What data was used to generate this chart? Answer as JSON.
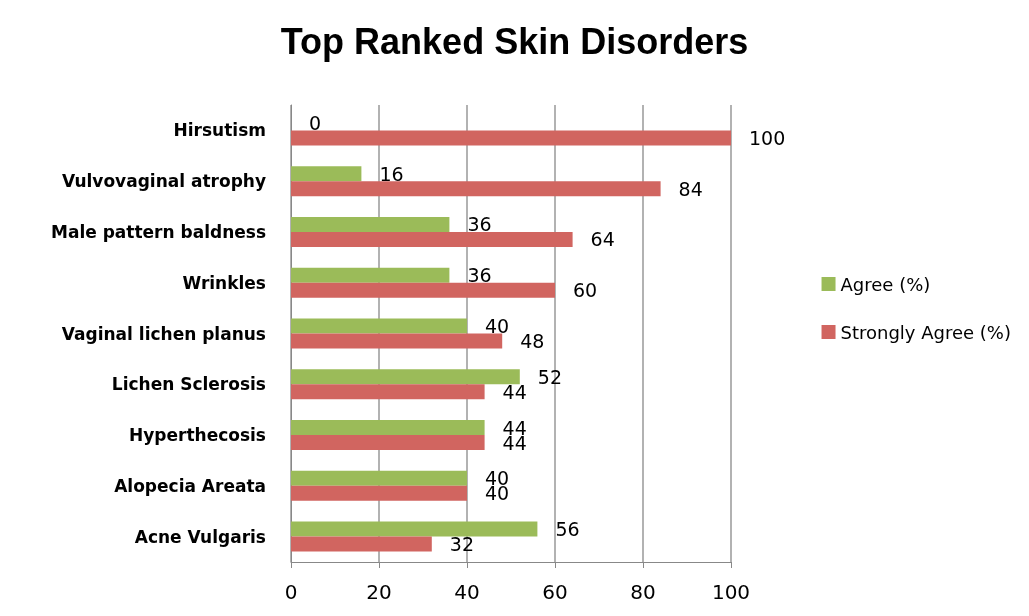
{
  "chart_data": {
    "type": "bar",
    "orientation": "horizontal",
    "title": "Top Ranked Skin Disorders",
    "categories": [
      "Hirsutism",
      "Vulvovaginal atrophy",
      "Male pattern baldness",
      "Wrinkles",
      "Vaginal lichen planus",
      "Lichen Sclerosis",
      "Hyperthecosis",
      "Alopecia Areata",
      "Acne Vulgaris"
    ],
    "series": [
      {
        "name": "Agree (%)",
        "color": "#9bbb59",
        "values": [
          0,
          16,
          36,
          36,
          40,
          52,
          44,
          40,
          56
        ]
      },
      {
        "name": "Strongly Agree (%)",
        "color": "#d16560",
        "values": [
          100,
          84,
          64,
          60,
          48,
          44,
          44,
          40,
          32
        ]
      }
    ],
    "xlim": [
      0,
      100
    ],
    "xticks": [
      0,
      20,
      40,
      60,
      80,
      100
    ],
    "grid": "x",
    "legend": "right",
    "data_labels": true
  }
}
